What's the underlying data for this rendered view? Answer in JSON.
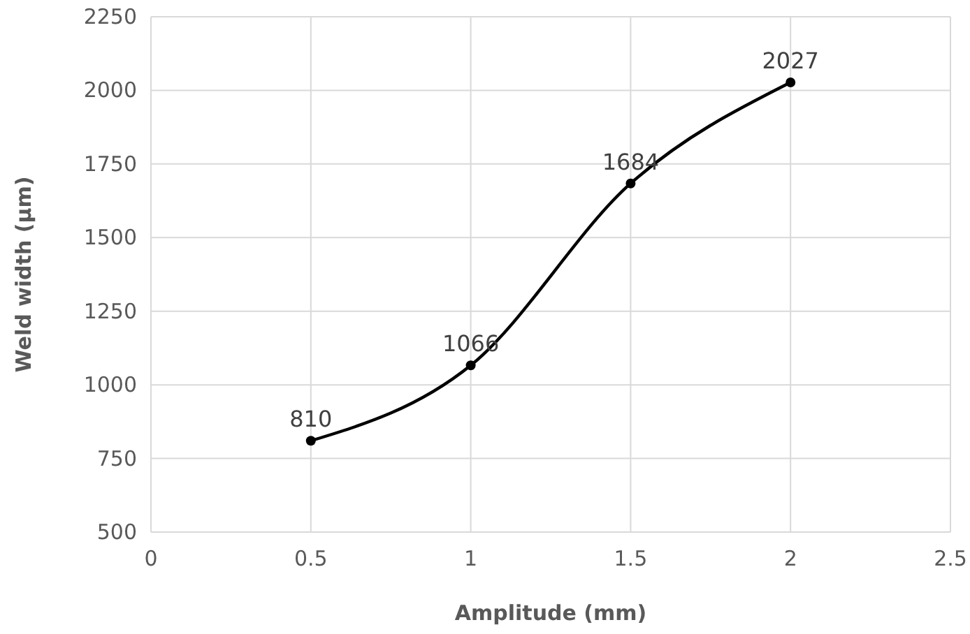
{
  "chart_data": {
    "type": "line",
    "xlabel": "Amplitude (mm)",
    "ylabel": "Weld width (µm)",
    "x": [
      0.5,
      1,
      1.5,
      2
    ],
    "series": [
      {
        "color": "#000000",
        "values": [
          810,
          1066,
          1684,
          2027
        ]
      }
    ],
    "xlim": [
      0,
      2.5
    ],
    "xticks": [
      0,
      0.5,
      1,
      1.5,
      2,
      2.5
    ],
    "ylim": [
      500,
      2250
    ],
    "yticks": [
      500,
      750,
      1000,
      1250,
      1500,
      1750,
      2000,
      2250
    ],
    "grid": true,
    "marker": "circle",
    "line_style": "solid",
    "data_labels": true
  }
}
